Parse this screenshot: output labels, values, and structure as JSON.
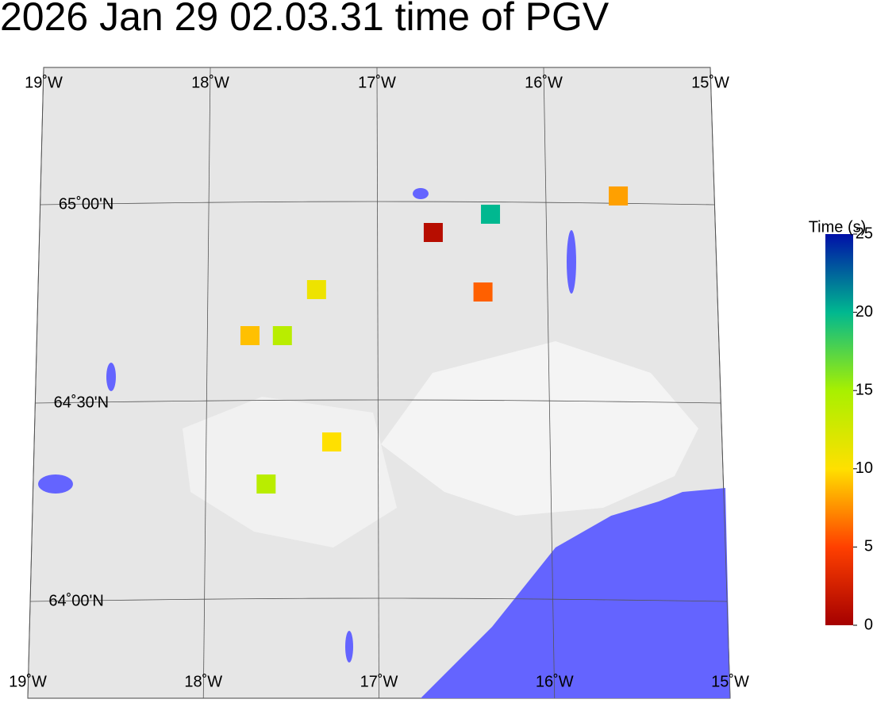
{
  "title": "2026 Jan 29 02.03.31 time of PGV",
  "meridians": [
    {
      "value": -19,
      "label": "19˚W"
    },
    {
      "value": -18,
      "label": "18˚W"
    },
    {
      "value": -17,
      "label": "17˚W"
    },
    {
      "value": -16,
      "label": "16˚W"
    },
    {
      "value": -15,
      "label": "15˚W"
    }
  ],
  "parallels": [
    {
      "value": 65,
      "label": "65˚00'N"
    },
    {
      "value": 64.5,
      "label": "64˚30'N"
    },
    {
      "value": 64,
      "label": "64˚00'N"
    }
  ],
  "stations": [
    {
      "lon": -16.67,
      "lat": 64.93,
      "time": 1
    },
    {
      "lon": -16.33,
      "lat": 64.976,
      "time": 20
    },
    {
      "lon": -15.57,
      "lat": 65.022,
      "time": 8
    },
    {
      "lon": -16.38,
      "lat": 64.78,
      "time": 6
    },
    {
      "lon": -17.36,
      "lat": 64.786,
      "time": 11
    },
    {
      "lon": -17.75,
      "lat": 64.67,
      "time": 9
    },
    {
      "lon": -17.56,
      "lat": 64.67,
      "time": 14
    },
    {
      "lon": -17.27,
      "lat": 64.402,
      "time": 10
    },
    {
      "lon": -17.65,
      "lat": 64.296,
      "time": 14
    }
  ],
  "colorbar": {
    "label": "Time (s)",
    "lim": [
      0,
      25
    ],
    "ticks": [
      0,
      5,
      10,
      15,
      20,
      25
    ]
  }
}
